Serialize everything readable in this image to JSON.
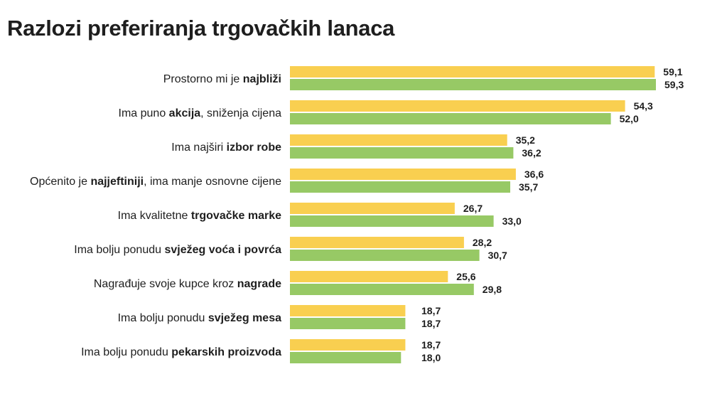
{
  "chart_data": {
    "type": "bar",
    "orientation": "horizontal",
    "title": "Razlozi preferiranja trgovačkih lanaca",
    "categories": [
      [
        {
          "t": "Prostorno mi je ",
          "b": false
        },
        {
          "t": "najbliži",
          "b": true
        }
      ],
      [
        {
          "t": "Ima puno ",
          "b": false
        },
        {
          "t": "akcija",
          "b": true
        },
        {
          "t": ", sniženja cijena",
          "b": false
        }
      ],
      [
        {
          "t": "Ima najširi ",
          "b": false
        },
        {
          "t": "izbor robe",
          "b": true
        }
      ],
      [
        {
          "t": "Općenito je ",
          "b": false
        },
        {
          "t": "najjeftiniji",
          "b": true
        },
        {
          "t": ", ima manje osnovne cijene",
          "b": false
        }
      ],
      [
        {
          "t": "Ima kvalitetne ",
          "b": false
        },
        {
          "t": "trgovačke marke",
          "b": true
        }
      ],
      [
        {
          "t": "Ima bolju ponudu ",
          "b": false
        },
        {
          "t": "svježeg voća i povrća",
          "b": true
        }
      ],
      [
        {
          "t": "Nagrađuje svoje kupce kroz ",
          "b": false
        },
        {
          "t": "nagrade",
          "b": true
        }
      ],
      [
        {
          "t": "Ima bolju ponudu ",
          "b": false
        },
        {
          "t": "svježeg mesa",
          "b": true
        }
      ],
      [
        {
          "t": "Ima bolju ponudu ",
          "b": false
        },
        {
          "t": "pekarskih proizvoda",
          "b": true
        }
      ]
    ],
    "series": [
      {
        "color": "#f9cf50",
        "values": [
          59.1,
          54.3,
          35.2,
          36.6,
          26.7,
          28.2,
          25.6,
          18.7,
          18.7
        ],
        "labels": [
          "59,1",
          "54,3",
          "35,2",
          "36,6",
          "26,7",
          "28,2",
          "25,6",
          "18,7",
          "18,7"
        ]
      },
      {
        "color": "#97c965",
        "values": [
          59.3,
          52.0,
          36.2,
          35.7,
          33.0,
          30.7,
          29.8,
          18.7,
          18.0
        ],
        "labels": [
          "59,3",
          "52,0",
          "36,2",
          "35,7",
          "33,0",
          "30,7",
          "29,8",
          "18,7",
          "18,0"
        ]
      }
    ],
    "xlim": [
      0,
      60
    ],
    "grid": false,
    "legend": false
  }
}
